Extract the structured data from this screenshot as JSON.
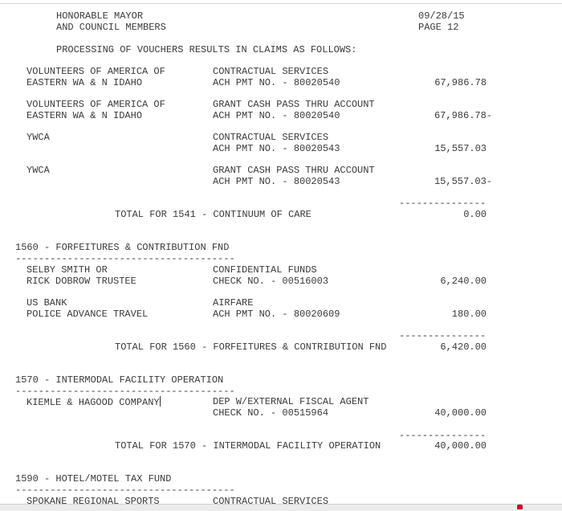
{
  "header": {
    "addressee_line1": "HONORABLE MAYOR",
    "addressee_line2": "AND COUNCIL MEMBERS",
    "date": "09/28/15",
    "page": "PAGE 12",
    "intro": "PROCESSING OF VOUCHERS RESULTS IN CLAIMS AS FOLLOWS:"
  },
  "separators": {
    "total_rule": "---------------",
    "section_rule": "--------------------------------------"
  },
  "fund_1541": {
    "entries": [
      {
        "name1": "VOLUNTEERS OF AMERICA OF",
        "name2": "EASTERN WA & N IDAHO",
        "desc1": "CONTRACTUAL SERVICES",
        "desc2": "ACH PMT NO. - 80020540",
        "amount": "67,986.78"
      },
      {
        "name1": "VOLUNTEERS OF AMERICA OF",
        "name2": "EASTERN WA & N IDAHO",
        "desc1": "GRANT CASH PASS THRU ACCOUNT",
        "desc2": "ACH PMT NO. - 80020540",
        "amount": "67,986.78-"
      },
      {
        "name1": "YWCA",
        "name2": "",
        "desc1": "CONTRACTUAL SERVICES",
        "desc2": "ACH PMT NO. - 80020543",
        "amount": "15,557.03"
      },
      {
        "name1": "YWCA",
        "name2": "",
        "desc1": "GRANT CASH PASS THRU ACCOUNT",
        "desc2": "ACH PMT NO. - 80020543",
        "amount": "15,557.03-"
      }
    ],
    "total_label": "TOTAL FOR 1541 - CONTINUUM OF CARE",
    "total": "0.00"
  },
  "fund_1560": {
    "title": "1560 - FORFEITURES & CONTRIBUTION FND",
    "entries": [
      {
        "name1": "SELBY SMITH OR",
        "name2": "RICK DOBROW TRUSTEE",
        "desc1": "CONFIDENTIAL FUNDS",
        "desc2": "CHECK NO. - 00516003",
        "amount": "6,240.00"
      },
      {
        "name1": "US BANK",
        "name2": "POLICE ADVANCE TRAVEL",
        "desc1": "AIRFARE",
        "desc2": "ACH PMT NO. - 80020609",
        "amount": "180.00"
      }
    ],
    "total_label": "TOTAL FOR 1560 - FORFEITURES & CONTRIBUTION FND",
    "total": "6,420.00"
  },
  "fund_1570": {
    "title": "1570 - INTERMODAL FACILITY OPERATION",
    "entries": [
      {
        "name1": "KIEMLE & HAGOOD COMPANY",
        "desc1": "DEP W/EXTERNAL FISCAL AGENT",
        "desc2": "CHECK NO. - 00515964",
        "amount": "40,000.00"
      }
    ],
    "total_label": "TOTAL FOR 1570 - INTERMODAL FACILITY OPERATION",
    "total": "40,000.00"
  },
  "fund_1590": {
    "title": "1590 - HOTEL/MOTEL TAX FUND",
    "entries": [
      {
        "name1": "SPOKANE REGIONAL SPORTS",
        "desc1": "CONTRACTUAL SERVICES"
      }
    ]
  }
}
